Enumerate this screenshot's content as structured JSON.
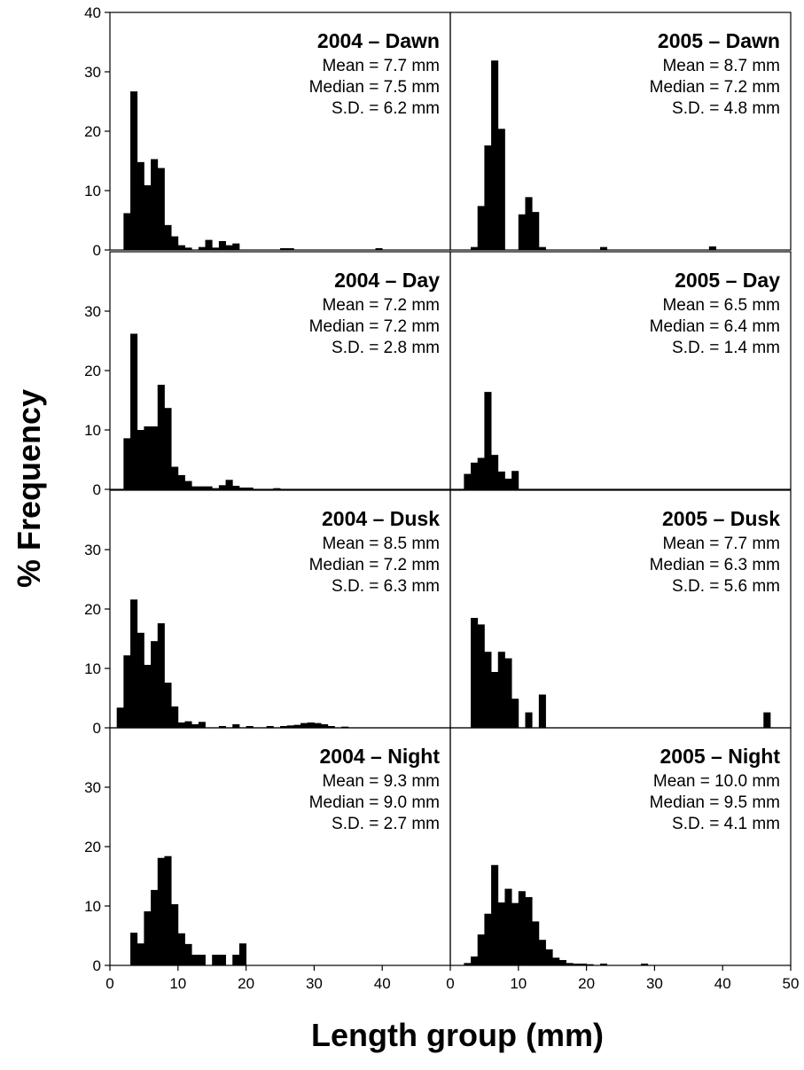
{
  "chart_data": {
    "type": "bar",
    "xlabel": "Length group (mm)",
    "ylabel": "% Frequency",
    "xlim": [
      0,
      50
    ],
    "ylim": [
      0,
      40
    ],
    "bin_width": 1,
    "x_ticks_left": [
      "0",
      "10",
      "20",
      "30",
      "40"
    ],
    "x_ticks_right": [
      "0",
      "10",
      "20",
      "30",
      "40",
      "50"
    ],
    "y_ticks_top": [
      "0",
      "10",
      "20",
      "30",
      "40"
    ],
    "y_ticks": [
      "0",
      "10",
      "20",
      "30"
    ],
    "panels": [
      {
        "title": "2004 – Dawn",
        "stats": [
          "Mean = 7.7 mm",
          "Median = 7.5 mm",
          "S.D. = 6.2 mm"
        ],
        "bars": [
          [
            2,
            6.2
          ],
          [
            3,
            26.7
          ],
          [
            4,
            14.8
          ],
          [
            5,
            10.9
          ],
          [
            6,
            15.3
          ],
          [
            7,
            13.8
          ],
          [
            8,
            4.2
          ],
          [
            9,
            2.3
          ],
          [
            10,
            0.8
          ],
          [
            11,
            0.4
          ],
          [
            13,
            0.5
          ],
          [
            14,
            1.7
          ],
          [
            15,
            0.4
          ],
          [
            16,
            1.5
          ],
          [
            17,
            0.8
          ],
          [
            18,
            1.1
          ],
          [
            25,
            0.3
          ],
          [
            26,
            0.3
          ],
          [
            39,
            0.3
          ]
        ]
      },
      {
        "title": "2005 – Dawn",
        "stats": [
          "Mean = 8.7 mm",
          "Median = 7.2 mm",
          "S.D. = 4.8 mm"
        ],
        "bars": [
          [
            3,
            0.5
          ],
          [
            4,
            7.4
          ],
          [
            5,
            17.6
          ],
          [
            6,
            31.9
          ],
          [
            7,
            20.4
          ],
          [
            10,
            6.0
          ],
          [
            11,
            8.9
          ],
          [
            12,
            6.4
          ],
          [
            13,
            0.5
          ],
          [
            22,
            0.5
          ],
          [
            38,
            0.6
          ]
        ]
      },
      {
        "title": "2004 – Day",
        "stats": [
          "Mean = 7.2 mm",
          "Median = 7.2 mm",
          "S.D. = 2.8 mm"
        ],
        "bars": [
          [
            2,
            8.6
          ],
          [
            3,
            26.2
          ],
          [
            4,
            10.0
          ],
          [
            5,
            10.6
          ],
          [
            6,
            10.6
          ],
          [
            7,
            17.6
          ],
          [
            8,
            13.7
          ],
          [
            9,
            3.8
          ],
          [
            10,
            2.4
          ],
          [
            11,
            1.4
          ],
          [
            12,
            0.5
          ],
          [
            13,
            0.5
          ],
          [
            14,
            0.5
          ],
          [
            15,
            0.2
          ],
          [
            16,
            0.7
          ],
          [
            17,
            1.6
          ],
          [
            18,
            0.6
          ],
          [
            19,
            0.3
          ],
          [
            20,
            0.3
          ],
          [
            24,
            0.2
          ]
        ]
      },
      {
        "title": "2005 – Day",
        "stats": [
          "Mean = 6.5 mm",
          "Median = 6.4 mm",
          "S.D. = 1.4 mm"
        ],
        "bars": [
          [
            2,
            2.6
          ],
          [
            3,
            4.5
          ],
          [
            4,
            5.3
          ],
          [
            5,
            16.4
          ],
          [
            6,
            5.8
          ],
          [
            7,
            3.0
          ],
          [
            8,
            1.8
          ],
          [
            9,
            3.1
          ]
        ]
      },
      {
        "title": "2004 – Dusk",
        "stats": [
          "Mean = 8.5 mm",
          "Median = 7.2 mm",
          "S.D. = 6.3 mm"
        ],
        "bars": [
          [
            1,
            3.4
          ],
          [
            2,
            12.2
          ],
          [
            3,
            21.6
          ],
          [
            4,
            16.0
          ],
          [
            5,
            10.6
          ],
          [
            6,
            14.6
          ],
          [
            7,
            17.6
          ],
          [
            8,
            7.6
          ],
          [
            9,
            3.6
          ],
          [
            10,
            0.9
          ],
          [
            11,
            1.1
          ],
          [
            12,
            0.6
          ],
          [
            13,
            1.0
          ],
          [
            16,
            0.3
          ],
          [
            18,
            0.6
          ],
          [
            20,
            0.3
          ],
          [
            23,
            0.3
          ],
          [
            25,
            0.3
          ],
          [
            26,
            0.4
          ],
          [
            27,
            0.5
          ],
          [
            28,
            0.8
          ],
          [
            29,
            0.9
          ],
          [
            30,
            0.8
          ],
          [
            31,
            0.6
          ],
          [
            32,
            0.3
          ],
          [
            34,
            0.2
          ]
        ]
      },
      {
        "title": "2005 – Dusk",
        "stats": [
          "Mean = 7.7 mm",
          "Median = 6.3 mm",
          "S.D. = 5.6 mm"
        ],
        "bars": [
          [
            3,
            18.5
          ],
          [
            4,
            17.4
          ],
          [
            5,
            12.8
          ],
          [
            6,
            9.4
          ],
          [
            7,
            12.8
          ],
          [
            8,
            11.7
          ],
          [
            9,
            4.9
          ],
          [
            11,
            2.6
          ],
          [
            13,
            5.6
          ],
          [
            46,
            2.6
          ]
        ]
      },
      {
        "title": "2004 – Night",
        "stats": [
          "Mean = 9.3 mm",
          "Median = 9.0 mm",
          "S.D. = 2.7 mm"
        ],
        "bars": [
          [
            3,
            5.5
          ],
          [
            4,
            3.7
          ],
          [
            5,
            9.1
          ],
          [
            6,
            12.7
          ],
          [
            7,
            18.1
          ],
          [
            8,
            18.4
          ],
          [
            9,
            10.3
          ],
          [
            10,
            5.4
          ],
          [
            11,
            3.6
          ],
          [
            12,
            1.8
          ],
          [
            13,
            1.8
          ],
          [
            15,
            1.8
          ],
          [
            16,
            1.8
          ],
          [
            18,
            1.8
          ],
          [
            19,
            3.7
          ]
        ]
      },
      {
        "title": "2005 – Night",
        "stats": [
          "Mean = 10.0 mm",
          "Median = 9.5 mm",
          "S.D. = 4.1 mm"
        ],
        "bars": [
          [
            2,
            0.4
          ],
          [
            3,
            1.5
          ],
          [
            4,
            5.2
          ],
          [
            5,
            8.7
          ],
          [
            6,
            16.9
          ],
          [
            7,
            10.6
          ],
          [
            8,
            12.9
          ],
          [
            9,
            10.5
          ],
          [
            10,
            12.5
          ],
          [
            11,
            11.5
          ],
          [
            12,
            7.4
          ],
          [
            13,
            4.3
          ],
          [
            14,
            2.7
          ],
          [
            15,
            1.3
          ],
          [
            16,
            0.9
          ],
          [
            17,
            0.4
          ],
          [
            18,
            0.3
          ],
          [
            19,
            0.3
          ],
          [
            20,
            0.2
          ],
          [
            22,
            0.3
          ],
          [
            28,
            0.3
          ]
        ]
      }
    ]
  }
}
